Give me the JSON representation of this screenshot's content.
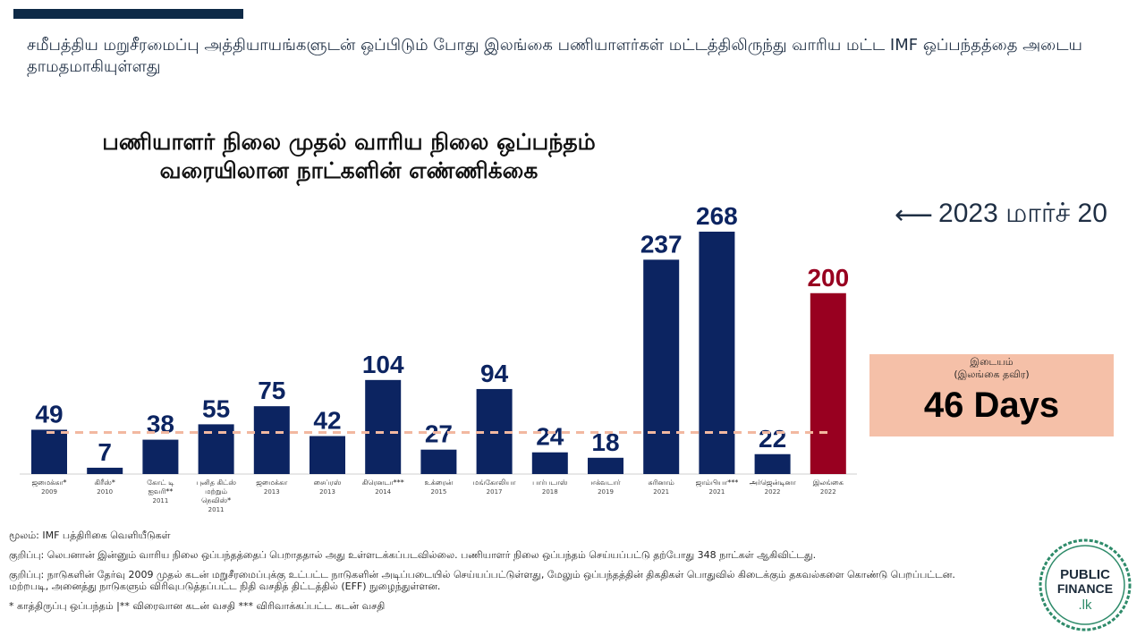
{
  "header": {
    "headline": "சமீபத்திய மறுசீரமைப்பு அத்தியாயங்களுடன் ஒப்பிடும் போது இலங்கை பணியாளர்கள் மட்டத்திலிருந்து வாரிய மட்ட IMF ஒப்பந்தத்தை அடைய தாமதமாகியுள்ளது"
  },
  "chart_title_line1": "பணியாளர் நிலை முதல் வாரிய நிலை ஒப்பந்தம்",
  "chart_title_line2": "வரையிலான நாட்களின் எண்ணிக்கை",
  "date_note": "2023 மார்ச் 20",
  "median_box": {
    "label": "இடையம்",
    "sublabel": "(இலங்கை தவிர)",
    "value": "46 Days"
  },
  "colors": {
    "bar_primary": "#0c2461",
    "bar_highlight": "#980020",
    "median_line": "#f2b8a0",
    "median_box": "#f5c0a8",
    "header_bar": "#0e2a47"
  },
  "chart_data": {
    "type": "bar",
    "title": "பணியாளர் நிலை முதல் வாரிய நிலை ஒப்பந்தம் வரையிலான நாட்களின் எண்ணிக்கை",
    "categories": [
      {
        "label": [
          "ஜமைக்கா*"
        ],
        "year": "2009"
      },
      {
        "label": [
          "கிரீஸ்*"
        ],
        "year": "2010"
      },
      {
        "label": [
          "கோட் டி",
          "ஐவரி**"
        ],
        "year": "2011"
      },
      {
        "label": [
          "புனித கிட்ஸ்",
          "மற்றும்",
          "நெவிஸ்*"
        ],
        "year": "2011"
      },
      {
        "label": [
          "ஜமைக்கா"
        ],
        "year": "2013"
      },
      {
        "label": [
          "சைப்ரஸ்"
        ],
        "year": "2013"
      },
      {
        "label": [
          "கிரெனடா***"
        ],
        "year": "2014"
      },
      {
        "label": [
          "உக்ரைன்"
        ],
        "year": "2015"
      },
      {
        "label": [
          "மங்கோலியா"
        ],
        "year": "2017"
      },
      {
        "label": [
          "பார்படாஸ்"
        ],
        "year": "2018"
      },
      {
        "label": [
          "ஈக்வடார்"
        ],
        "year": "2019"
      },
      {
        "label": [
          "சுரினாம்"
        ],
        "year": "2021"
      },
      {
        "label": [
          "ஜாம்பியா***"
        ],
        "year": "2021"
      },
      {
        "label": [
          "அர்ஜென்டினா"
        ],
        "year": "2022"
      },
      {
        "label": [
          "இலங்கை"
        ],
        "year": "2022"
      }
    ],
    "values": [
      49,
      7,
      38,
      55,
      75,
      42,
      104,
      27,
      94,
      24,
      18,
      237,
      268,
      22,
      200
    ],
    "highlight_index": 14,
    "median_value": 46,
    "ylim": [
      0,
      300
    ],
    "xlabel": "",
    "ylabel": "",
    "grid": false,
    "legend": "none"
  },
  "notes": {
    "source": "மூலம்: IMF பத்திரிகை வெளியீடுகள்",
    "note1": "குறிப்பு: லெபனான் இன்னும் வாரிய நிலை ஒப்பந்தத்தைப் பெறாததால் அது உள்ளடக்கப்படவில்லை. பணியாளர் நிலை ஒப்பந்தம் செய்யப்பட்டு தற்போது 348 நாட்கள் ஆகிவிட்டது.",
    "note2": "குறிப்பு: நாடுகளின் தேர்வு 2009 முதல் கடன் மறுசீரமைப்புக்கு உட்பட்ட நாடுகளின் அடிப்படையில் செய்யப்பட்டுள்ளது, மேலும் ஒப்பந்தத்தின் திகதிகள் பொதுவில் கிடைக்கும் தகவல்களை கொண்டு பெறப்பட்டன. மற்றபடி, அனைத்து நாடுகளும் விரிவுபடுத்தப்பட்ட நிதி வசதித் திட்டத்தில் (EFF) நுழைந்துள்ளன.",
    "legend_note": "* காத்திருப்பு ஒப்பந்தம் |** விரைவான கடன் வசதி *** விரிவாக்கப்பட்ட கடன் வசதி"
  },
  "logo": {
    "line1": "PUBLIC",
    "line2": "FINANCE",
    "line3": ".lk",
    "icon": "public-finance-logo"
  }
}
